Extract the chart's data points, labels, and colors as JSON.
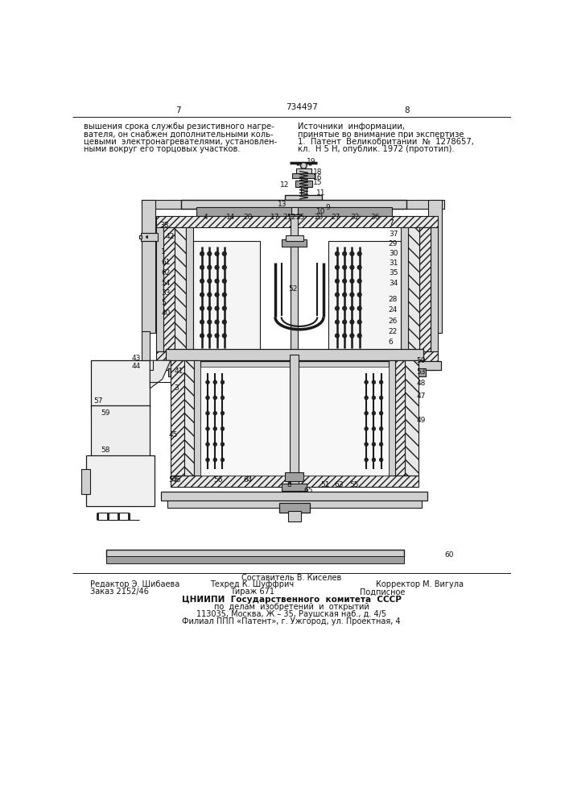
{
  "patent_number": "734497",
  "page_left": "7",
  "page_right": "8",
  "top_left_text": [
    "вышения срока службы резистивного нагре-",
    "вателя, он снабжен дополнительными коль-",
    "цевыми  электронагревателями, установлен-",
    "ными вокруг его торцовых участков."
  ],
  "top_right_text": [
    "Источники  информации,",
    "принятые во внимание при экспертизе",
    "1.  Патент  Великобритании  №  1278657,",
    "кл.  Н 5 Н, опублик. 1972 (прототип)."
  ],
  "bottom_line1": "Составитель В. Киселев",
  "bottom_line2_left": "Редактор Э. Шибаева",
  "bottom_line2_mid": "Техред К. Шуффрич",
  "bottom_line2_right": "Корректор М. Вигула",
  "bottom_line3_left": "Заказ 2152/46",
  "bottom_line3_mid": "Тираж 671",
  "bottom_line3_right": "Подписное",
  "bottom_line4": "ЦНИИПИ  Государственного  комитета  СССР",
  "bottom_line5": "по  делам  изобретений  и  открытий",
  "bottom_line6": "113035, Москва, Ж – 35, Раушская наб., д. 4/5",
  "bottom_line7": "Филиал ППП «Патент», г. Ужгород, ул. Проектная, 4",
  "bg_color": "#ffffff",
  "lc": "#1a1a1a",
  "tc": "#111111",
  "gray_light": "#d0d0d0",
  "gray_mid": "#a0a0a0",
  "hatch_fc": "#e8e8e8"
}
